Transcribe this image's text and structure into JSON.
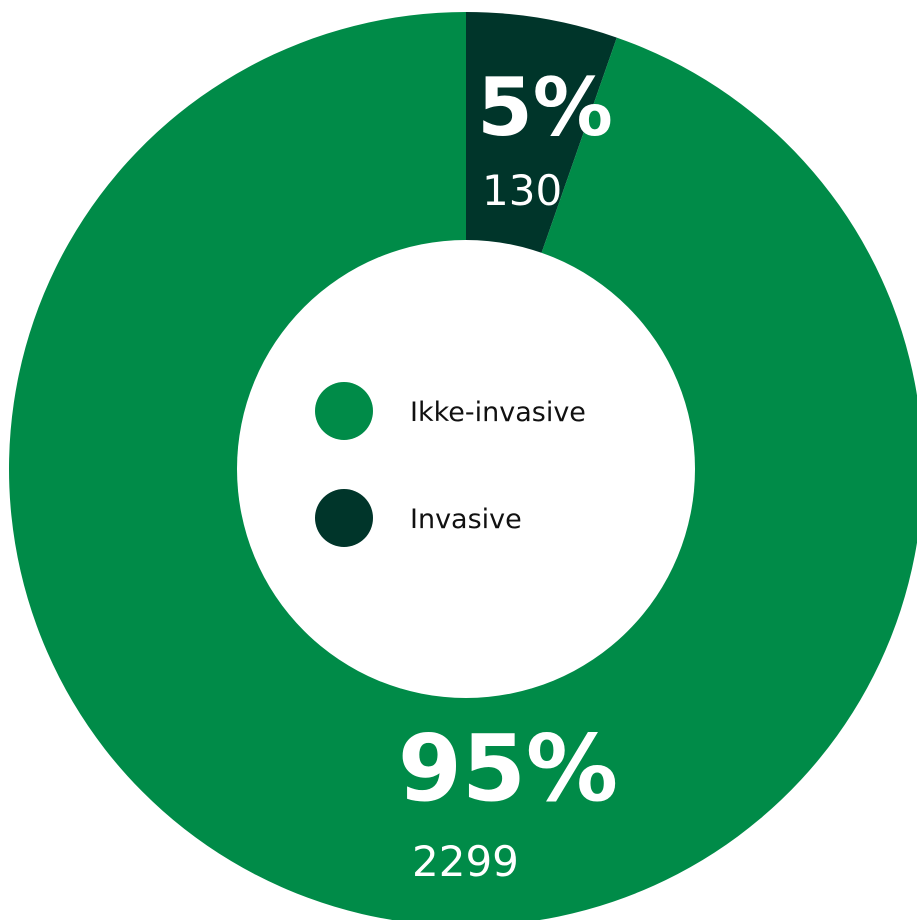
{
  "chart_data": {
    "type": "pie",
    "donut": true,
    "start_angle_deg": 0,
    "direction": "clockwise",
    "legend_position": "center",
    "series": [
      {
        "name": "Invasive",
        "value": 130,
        "percent_label": "5%",
        "count_label": "130",
        "color": "#00352a"
      },
      {
        "name": "Ikke-invasive",
        "value": 2299,
        "percent_label": "95%",
        "count_label": "2299",
        "color": "#008b48"
      }
    ],
    "legend": [
      {
        "label": "Ikke-invasive",
        "color": "#008b48"
      },
      {
        "label": "Invasive",
        "color": "#00352a"
      }
    ]
  }
}
